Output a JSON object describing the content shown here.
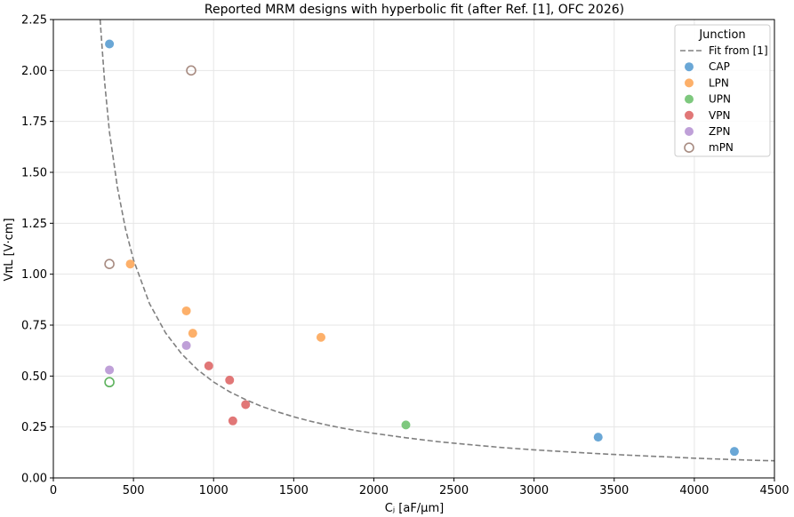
{
  "chart_data": {
    "type": "scatter",
    "title": "Reported MRM designs with hyperbolic fit (after Ref. [1], OFC 2026)",
    "xlabel": "Cⱼ  [aF/µm]",
    "ylabel": "VπL  [V·cm]",
    "xlim": [
      0,
      4500
    ],
    "ylim": [
      0,
      2.25
    ],
    "x_ticks": [
      0,
      500,
      1000,
      1500,
      2000,
      2500,
      3000,
      3500,
      4000,
      4500
    ],
    "y_ticks": [
      0.0,
      0.25,
      0.5,
      0.75,
      1.0,
      1.25,
      1.5,
      1.75,
      2.0,
      2.25
    ],
    "x_tick_labels": [
      "0",
      "500",
      "1000",
      "1500",
      "2000",
      "2500",
      "3000",
      "3500",
      "4000",
      "4500"
    ],
    "y_tick_labels": [
      "0.00",
      "0.25",
      "0.50",
      "0.75",
      "1.00",
      "1.25",
      "1.50",
      "1.75",
      "2.00",
      "2.25"
    ],
    "grid": true,
    "legend": {
      "title": "Junction",
      "placement": "top-right"
    },
    "fit": {
      "name": "Fit from [1]",
      "style": "dashed",
      "color": "#808080",
      "x": [
        292,
        300,
        320,
        350,
        400,
        450,
        500,
        600,
        700,
        800,
        900,
        1000,
        1100,
        1200,
        1300,
        1400,
        1500,
        1600,
        1700,
        1800,
        1900,
        2000,
        2200,
        2400,
        2600,
        2800,
        3000,
        3200,
        3400,
        3600,
        3800,
        4000,
        4200,
        4400,
        4500
      ],
      "y": [
        2.25,
        2.157,
        1.942,
        1.698,
        1.425,
        1.223,
        1.071,
        0.856,
        0.712,
        0.609,
        0.531,
        0.471,
        0.423,
        0.384,
        0.351,
        0.324,
        0.3,
        0.279,
        0.261,
        0.245,
        0.231,
        0.219,
        0.197,
        0.178,
        0.163,
        0.149,
        0.138,
        0.128,
        0.119,
        0.111,
        0.104,
        0.097,
        0.091,
        0.086,
        0.084
      ]
    },
    "series": [
      {
        "name": "CAP",
        "color": "#6aa7d6",
        "filled": true,
        "points": [
          [
            350,
            2.13
          ],
          [
            3400,
            0.2
          ],
          [
            4250,
            0.13
          ]
        ]
      },
      {
        "name": "LPN",
        "color": "#fdb06a",
        "filled": true,
        "points": [
          [
            480,
            1.05
          ],
          [
            830,
            0.82
          ],
          [
            870,
            0.71
          ],
          [
            1670,
            0.69
          ]
        ]
      },
      {
        "name": "UPN",
        "color": "#7ec87e",
        "filled": true,
        "points": [
          [
            2200,
            0.26
          ]
        ]
      },
      {
        "name": "VPN",
        "color": "#e17777",
        "filled": true,
        "points": [
          [
            970,
            0.55
          ],
          [
            1100,
            0.48
          ],
          [
            1200,
            0.36
          ],
          [
            1120,
            0.28
          ]
        ]
      },
      {
        "name": "ZPN",
        "color": "#bfa0d8",
        "filled": true,
        "points": [
          [
            350,
            0.53
          ],
          [
            830,
            0.65
          ]
        ]
      },
      {
        "name": "mPN",
        "color": "#a88c82",
        "filled": false,
        "points": [
          [
            860,
            2.0
          ],
          [
            350,
            1.05
          ]
        ]
      },
      {
        "name": "",
        "color": "#5fb35f",
        "filled": false,
        "points": [
          [
            350,
            0.47
          ]
        ]
      }
    ]
  }
}
